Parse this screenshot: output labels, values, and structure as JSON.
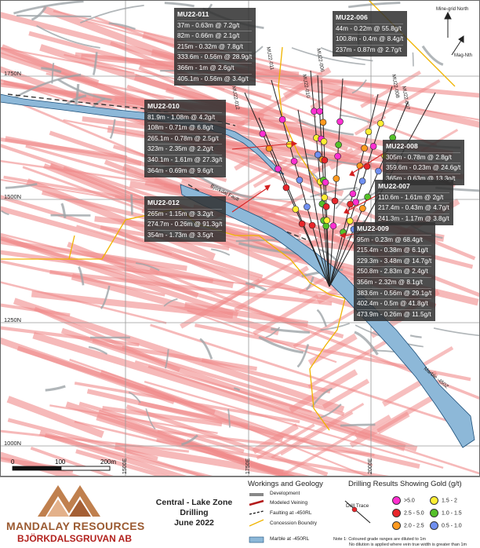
{
  "grid": {
    "northings": [
      "1750N",
      "1500N",
      "1250N",
      "1000N"
    ],
    "eastings": [
      "1500E",
      "1750E",
      "2000E"
    ]
  },
  "north_arrow": {
    "mine_grid": "Mine-grid North",
    "mag": "Mag-Nth"
  },
  "scale_bar": {
    "labels": [
      "0",
      "100",
      "200m"
    ]
  },
  "hole_labels": [
    "MU22-011",
    "MU22-010",
    "MU22-006",
    "MU22-008",
    "MU22-007",
    "MU22-012",
    "MU22-009"
  ],
  "map_labels": {
    "bjorkdal_fault": "Björkdal Fault",
    "marble_450": "Marble -450Z"
  },
  "callouts": [
    {
      "title": "MU22-011",
      "rows": [
        "37m - 0.63m @ 7.2g/t",
        "82m - 0.66m @ 2.1g/t",
        "215m - 0.32m @ 7.8g/t",
        "333.6m - 0.56m @ 28.9g/t",
        "366m - 1m @ 2.6g/t",
        "405.1m - 0.56m @ 3.4g/t"
      ]
    },
    {
      "title": "MU22-006",
      "rows": [
        "44m - 0.22m @ 55.8g/t",
        "100.8m - 0.4m @ 8.4g/t",
        "237m - 0.87m @ 2.7g/t"
      ]
    },
    {
      "title": "MU22-010",
      "rows": [
        "81.9m - 1.08m @ 4.2g/t",
        "108m - 0.71m @ 6.8g/t",
        "265.1m - 0.78m @ 2.5g/t",
        "323m - 2.35m @ 2.2g/t",
        "340.1m - 1.61m @ 27.3g/t",
        "364m - 0.69m @ 9.6g/t"
      ]
    },
    {
      "title": "MU22-008",
      "rows": [
        "305m - 0.78m @ 2.8g/t",
        "359.6m - 0.23m @ 24.6g/t",
        "365m - 0.63m @ 13.3g/t"
      ]
    },
    {
      "title": "MU22-007",
      "rows": [
        "110.6m - 1.61m @ 2g/t",
        "217.4m - 0.43m @ 4.7g/t",
        "241.3m - 1.17m @ 3.8g/t"
      ]
    },
    {
      "title": "MU22-012",
      "rows": [
        "265m - 1.15m @ 3.2g/t",
        "274.7m - 0.26m @ 91.3g/t",
        "354m - 1.73m @ 3.5g/t"
      ]
    },
    {
      "title": "MU22-009",
      "rows": [
        "95m - 0.23m @ 68.4g/t",
        "215.4m - 0.38m @ 6.1g/t",
        "229.3m - 3.48m @ 14.7g/t",
        "250.8m - 2.83m @ 2.4g/t",
        "356m - 2.32m @ 8.1g/t",
        "383.6m - 0.56m @ 29.1g/t",
        "402.4m - 0.5m @ 41.8g/t",
        "473.9m - 0.26m @ 11.5g/t"
      ]
    }
  ],
  "legend": {
    "company": "MANDALAY RESOURCES",
    "subsidiary": "BJÖRKDALSGRUVAN AB",
    "title_lines": [
      "Central - Lake Zone",
      "Drilling",
      "June 2022"
    ],
    "workings_title": "Workings and Geology",
    "workings_items": [
      "Development",
      "Modeled Veining",
      "Faulting at -450RL",
      "Concession Boundry",
      "Marble at -450RL"
    ],
    "results_title": "Drilling Results Showing Gold (g/t)",
    "drill_trace": "Drill Trace",
    "grade_bins": [
      {
        "label": ">5.0",
        "color": "#ff2fd0"
      },
      {
        "label": "2.5 - 5.0",
        "color": "#e8262b"
      },
      {
        "label": "2.0 - 2.5",
        "color": "#ff9a1f"
      },
      {
        "label": "1.5 - 2",
        "color": "#ffee33"
      },
      {
        "label": "1.0 - 1.5",
        "color": "#55c02a"
      },
      {
        "label": "0.5 - 1.0",
        "color": "#6f8ff0"
      }
    ],
    "notes": [
      "Note 1: Coloured grade ranges are diluted to 1m",
      "No dilution is applied where vein true width is greater than 1m"
    ]
  }
}
